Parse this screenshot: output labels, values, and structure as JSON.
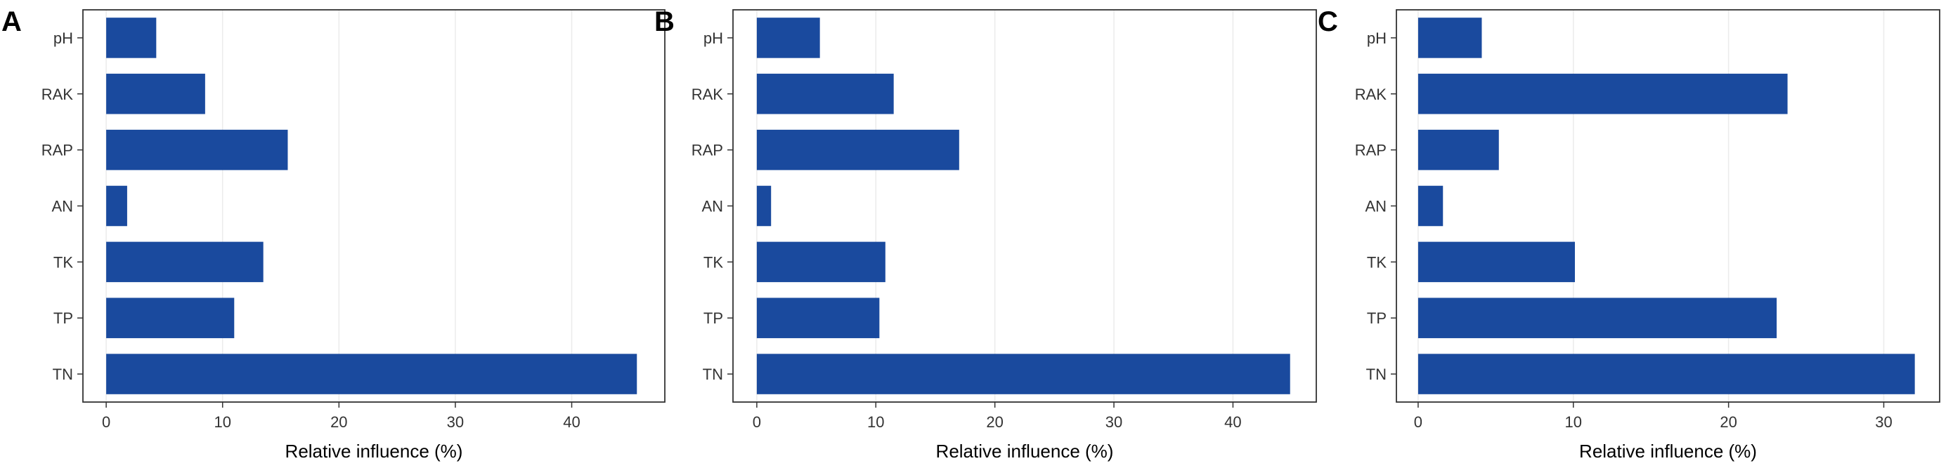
{
  "chart_data": [
    {
      "panel": "A",
      "type": "bar",
      "orientation": "horizontal",
      "categories": [
        "pH",
        "RAK",
        "RAP",
        "AN",
        "TK",
        "TP",
        "TN"
      ],
      "values": [
        4.3,
        8.5,
        15.6,
        1.8,
        13.5,
        11.0,
        45.6
      ],
      "xlabel": "Relative influence (%)",
      "xlim": [
        -2,
        48
      ],
      "xticks": [
        0,
        10,
        20,
        30,
        40
      ],
      "bar_color": "#1a4a9e",
      "grid": "vertical"
    },
    {
      "panel": "B",
      "type": "bar",
      "orientation": "horizontal",
      "categories": [
        "pH",
        "RAK",
        "RAP",
        "AN",
        "TK",
        "TP",
        "TN"
      ],
      "values": [
        5.3,
        11.5,
        17.0,
        1.2,
        10.8,
        10.3,
        44.8
      ],
      "xlabel": "Relative influence (%)",
      "xlim": [
        -2,
        47
      ],
      "xticks": [
        0,
        10,
        20,
        30,
        40
      ],
      "bar_color": "#1a4a9e",
      "grid": "vertical"
    },
    {
      "panel": "C",
      "type": "bar",
      "orientation": "horizontal",
      "categories": [
        "pH",
        "RAK",
        "RAP",
        "AN",
        "TK",
        "TP",
        "TN"
      ],
      "values": [
        4.1,
        23.8,
        5.2,
        1.6,
        10.1,
        23.1,
        32.0
      ],
      "xlabel": "Relative influence (%)",
      "xlim": [
        -1.4,
        33.6
      ],
      "xticks": [
        0,
        10,
        20,
        30
      ],
      "bar_color": "#1a4a9e",
      "grid": "vertical"
    }
  ]
}
